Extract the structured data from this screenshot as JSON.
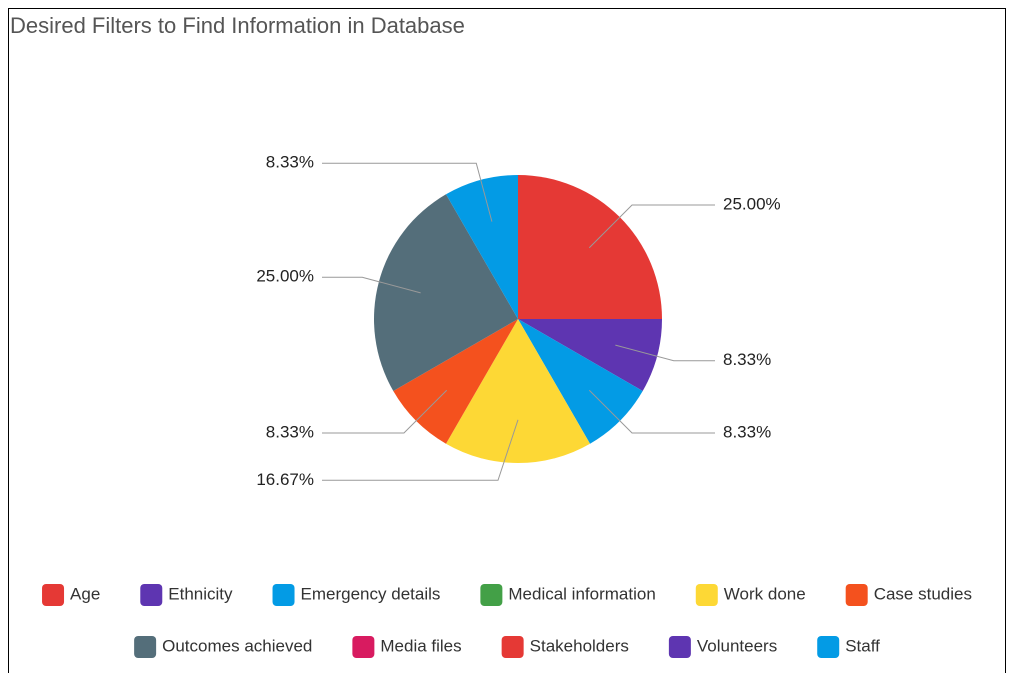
{
  "chart_data": {
    "type": "pie",
    "title": "Desired Filters to Find Information in Database",
    "categories": [
      "Age",
      "Ethnicity",
      "Emergency details",
      "Medical information",
      "Work done",
      "Case studies",
      "Outcomes achieved",
      "Media files",
      "Stakeholders",
      "Volunteers",
      "Staff"
    ],
    "values": [
      25,
      8.33,
      8.33,
      0,
      16.67,
      8.33,
      25,
      0,
      0,
      0,
      8.33
    ],
    "value_labels": [
      "25.00%",
      "8.33%",
      "8.33%",
      null,
      "16.67%",
      "8.33%",
      "25.00%",
      null,
      null,
      null,
      "8.33%"
    ],
    "colors": [
      "#e53935",
      "#5e35b1",
      "#039be5",
      "#43a047",
      "#fdd835",
      "#f4511e",
      "#546e7a",
      "#d81b60",
      "#e53935",
      "#5e35b1",
      "#039be5"
    ],
    "legend": "bottom"
  }
}
